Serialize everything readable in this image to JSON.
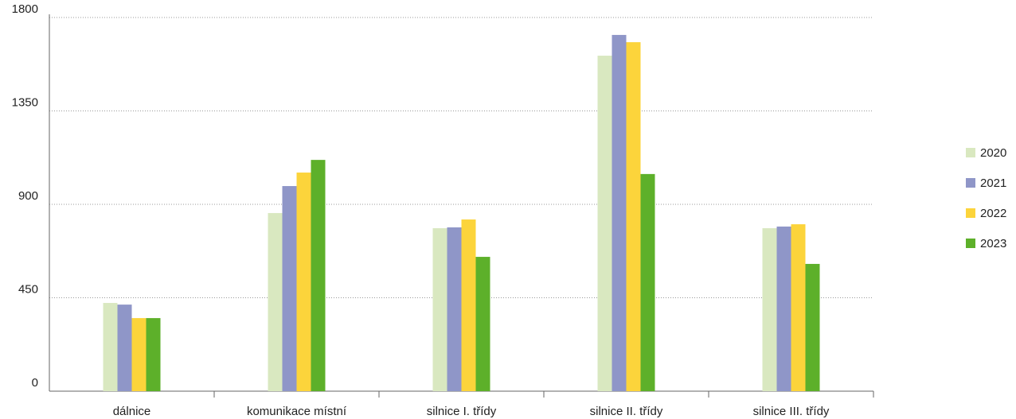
{
  "chart_data": {
    "type": "bar",
    "categories": [
      "dálnice",
      "komunikace místní",
      "silnice I. třídy",
      "silnice II. třídy",
      "silnice III. třídy"
    ],
    "series": [
      {
        "name": "2020",
        "color": "#d9e8c0",
        "values": [
          425,
          858,
          785,
          1616,
          785
        ]
      },
      {
        "name": "2021",
        "color": "#8f96c8",
        "values": [
          417,
          988,
          789,
          1716,
          793
        ]
      },
      {
        "name": "2022",
        "color": "#fcd43b",
        "values": [
          352,
          1053,
          827,
          1681,
          804
        ]
      },
      {
        "name": "2023",
        "color": "#5db02a",
        "values": [
          352,
          1114,
          647,
          1046,
          613
        ]
      }
    ],
    "ylim": [
      0,
      1800
    ],
    "yticks": [
      0,
      450,
      900,
      1350,
      1800
    ],
    "grid": true,
    "legend": "right"
  }
}
